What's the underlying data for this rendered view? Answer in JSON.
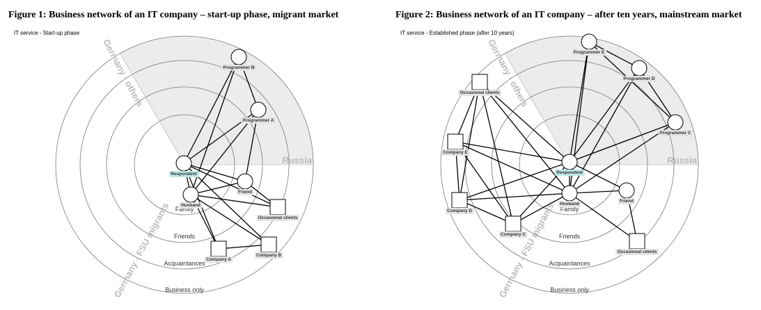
{
  "figures": [
    {
      "title": "Figure 1: Business network of an IT company – start-up phase, migrant market",
      "subtitle": "IT service - Start-up phase",
      "rings": [
        "Family",
        "Friends",
        "Acquaintances",
        "Business only"
      ],
      "sectors": [
        "Germany - others",
        "Russia",
        "Germany - FSU migrants"
      ],
      "nodes": [
        "Programmer B",
        "Programmer A",
        "Respondent",
        "Husband",
        "Friend",
        "Occasional clients",
        "Company A",
        "Company B"
      ]
    },
    {
      "title": "Figure 2: Business network of an IT company – after ten years, mainstream market",
      "subtitle": "IT service - Established phase (after 10 years)",
      "rings": [
        "Family",
        "Friends",
        "Acquaintances",
        "Business only"
      ],
      "sectors": [
        "Germany - others",
        "Russia",
        "Germany - FSU migrants"
      ],
      "nodes": [
        "Programmer E",
        "Programmer D",
        "Programmer C",
        "Occasional clients",
        "Company E",
        "Respondent",
        "Husband",
        "Friend",
        "Company D",
        "Company C",
        "Occasional clients"
      ]
    }
  ]
}
